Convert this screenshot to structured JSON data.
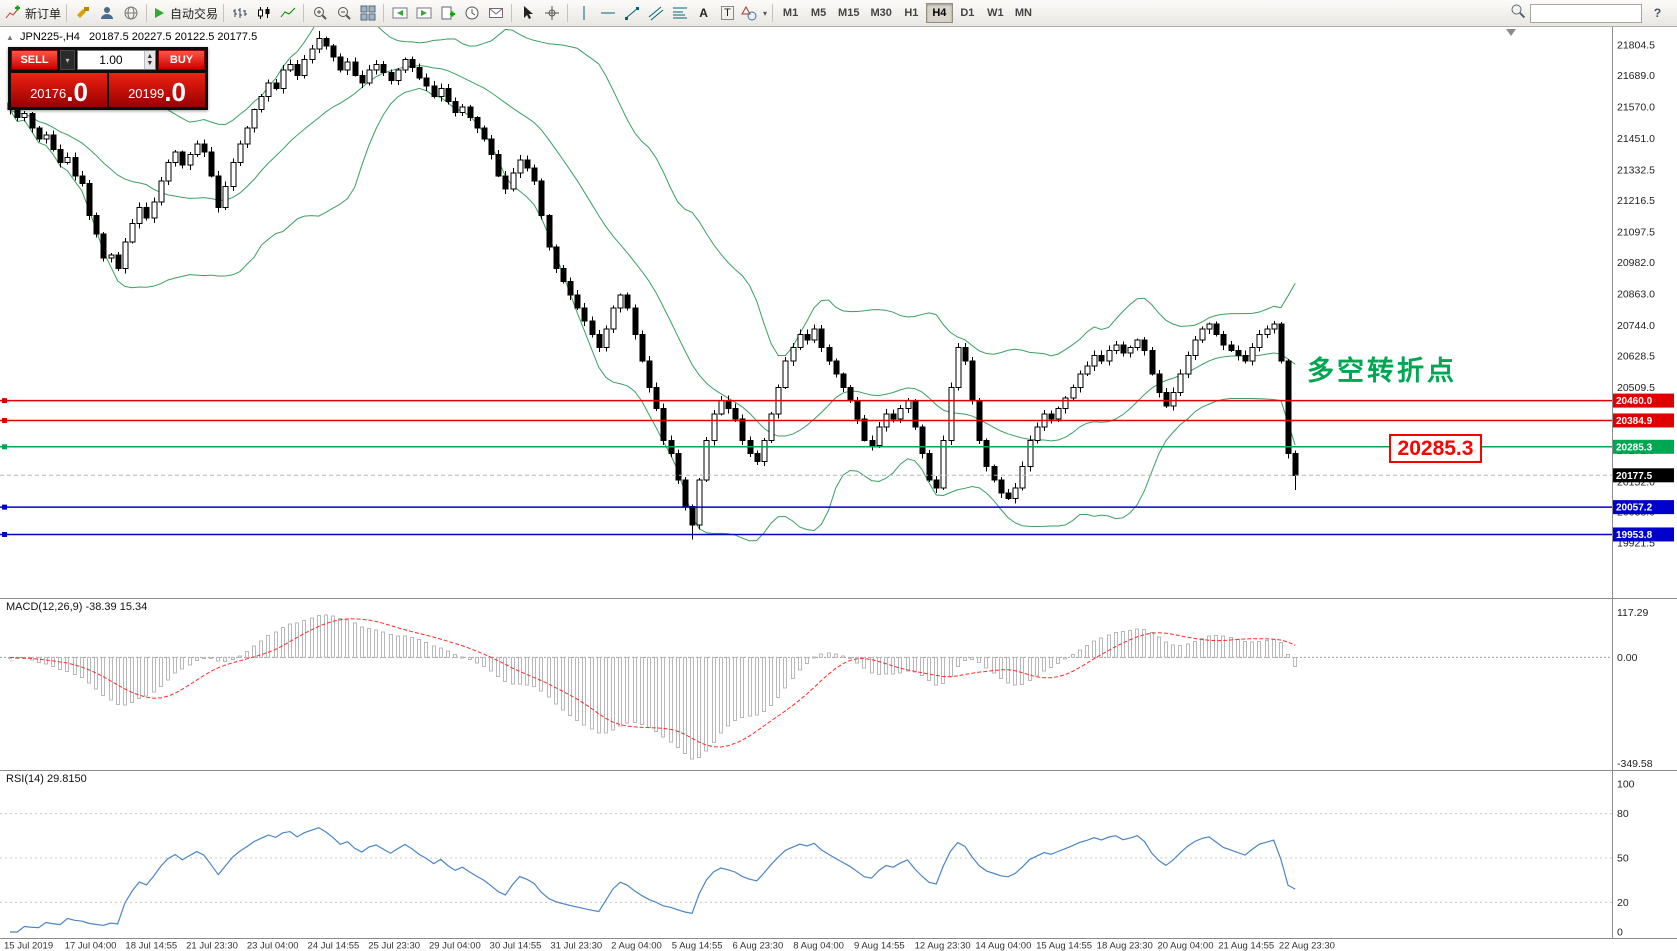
{
  "toolbar": {
    "new_order_label": "新订单",
    "autotrade_label": "自动交易",
    "timeframes": [
      "M1",
      "M5",
      "M15",
      "M30",
      "H1",
      "H4",
      "D1",
      "W1",
      "MN"
    ],
    "active_timeframe": "H4"
  },
  "trade_panel": {
    "sell_label": "SELL",
    "buy_label": "BUY",
    "volume": "1.00",
    "sell_price_main": "20176",
    "sell_price_fraction": ".0",
    "buy_price_main": "20199",
    "buy_price_fraction": ".0"
  },
  "chart": {
    "header_symbol": "JPN225-,H4",
    "header_ohlc": "20187.5 20227.5 20122.5 20177.5",
    "annotation_text": "多空转折点",
    "callout_value": "20285.3",
    "price_axis_ticks": [
      21804.5,
      21689.0,
      21570.0,
      21451.0,
      21332.5,
      21216.5,
      21097.5,
      20982.0,
      20863.0,
      20744.0,
      20628.5,
      20509.5,
      20390.5,
      20271.5,
      20152.0,
      20038.0,
      19921.5
    ],
    "hlines": [
      {
        "price": 20460.0,
        "label": "20460.0",
        "color": "#e00000"
      },
      {
        "price": 20384.9,
        "label": "20384.9",
        "color": "#e00000"
      },
      {
        "price": 20285.3,
        "label": "20285.3",
        "color": "#00a651"
      },
      {
        "price": 20057.2,
        "label": "20057.2",
        "color": "#0000cc"
      },
      {
        "price": 19953.8,
        "label": "19953.8",
        "color": "#0000cc"
      }
    ],
    "last_price": {
      "value": 20177.5,
      "label": "20177.5"
    },
    "time_axis": [
      "15 Jul 2019",
      "17 Jul 04:00",
      "18 Jul 14:55",
      "21 Jul 23:30",
      "23 Jul 04:00",
      "24 Jul 14:55",
      "25 Jul 23:30",
      "29 Jul 04:00",
      "30 Jul 14:55",
      "31 Jul 23:30",
      "2 Aug 04:00",
      "5 Aug 14:55",
      "6 Aug 23:30",
      "8 Aug 04:00",
      "9 Aug 14:55",
      "12 Aug 23:30",
      "14 Aug 04:00",
      "15 Aug 14:55",
      "18 Aug 23:30",
      "20 Aug 04:00",
      "21 Aug 14:55",
      "22 Aug 23:30"
    ]
  },
  "macd": {
    "legend": "MACD(12,26,9) -38.39 15.34",
    "axis_max": "117.29",
    "axis_zero": "0.00",
    "axis_min": "-349.58"
  },
  "rsi": {
    "legend": "RSI(14) 29.8150",
    "axis_labels": [
      "100",
      "80",
      "50",
      "20",
      "0"
    ],
    "levels": [
      80,
      50,
      20
    ]
  },
  "chart_data": {
    "type": "candlestick",
    "symbol": "JPN225-",
    "timeframe": "H4",
    "last_ohlc": {
      "open": 20187.5,
      "high": 20227.5,
      "low": 20122.5,
      "close": 20177.5
    },
    "view_price_range": [
      19700,
      21872
    ],
    "closes": [
      21560,
      21530,
      21545,
      21490,
      21450,
      21465,
      21410,
      21360,
      21380,
      21310,
      21280,
      21160,
      21090,
      21000,
      21010,
      20960,
      21060,
      21130,
      21190,
      21150,
      21210,
      21290,
      21360,
      21400,
      21350,
      21390,
      21430,
      21400,
      21310,
      21190,
      21270,
      21360,
      21430,
      21490,
      21560,
      21610,
      21660,
      21640,
      21710,
      21730,
      21690,
      21750,
      21790,
      21830,
      21800,
      21760,
      21710,
      21740,
      21690,
      21660,
      21710,
      21730,
      21700,
      21670,
      21710,
      21750,
      21720,
      21680,
      21650,
      21610,
      21640,
      21590,
      21550,
      21570,
      21530,
      21490,
      21450,
      21390,
      21310,
      21260,
      21320,
      21370,
      21340,
      21290,
      21160,
      21040,
      20960,
      20910,
      20860,
      20810,
      20760,
      20710,
      20660,
      20730,
      20810,
      20860,
      20810,
      20710,
      20610,
      20510,
      20430,
      20310,
      20260,
      20160,
      20060,
      19990,
      20160,
      20310,
      20410,
      20460,
      20430,
      20390,
      20310,
      20260,
      20230,
      20310,
      20410,
      20510,
      20610,
      20660,
      20710,
      20690,
      20730,
      20660,
      20610,
      20560,
      20510,
      20460,
      20390,
      20310,
      20290,
      20360,
      20410,
      20390,
      20430,
      20460,
      20360,
      20260,
      20160,
      20130,
      20310,
      20510,
      20660,
      20610,
      20460,
      20310,
      20210,
      20160,
      20110,
      20090,
      20130,
      20210,
      20310,
      20360,
      20410,
      20390,
      20430,
      20470,
      20510,
      20560,
      20590,
      20630,
      20610,
      20650,
      20670,
      20640,
      20660,
      20690,
      20650,
      20560,
      20490,
      20440,
      20490,
      20560,
      20630,
      20690,
      20730,
      20750,
      20710,
      20670,
      20650,
      20630,
      20610,
      20660,
      20710,
      20730,
      20750,
      20610,
      20260,
      20177.5
    ],
    "high_overrides": {
      "43": 21858
    },
    "low_overrides": {
      "95": 19935,
      "179": 20122.5
    },
    "indicators": {
      "bollinger": {
        "period": 20,
        "deviation": 2,
        "color": "#3aa064"
      },
      "macd": {
        "fast": 12,
        "slow": 26,
        "signal": 9,
        "current": -38.39,
        "current_signal": 15.34
      },
      "rsi": {
        "period": 14,
        "current": 29.815
      }
    }
  }
}
